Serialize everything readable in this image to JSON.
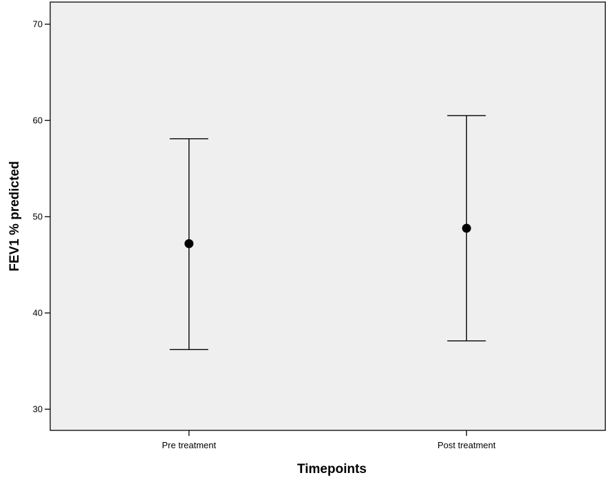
{
  "chart_data": {
    "type": "errorbar",
    "categories": [
      "Pre treatment",
      "Post treatment"
    ],
    "series": [
      {
        "means": [
          47.2,
          48.8
        ],
        "lower": [
          36.2,
          37.1
        ],
        "upper": [
          58.1,
          60.5
        ]
      }
    ],
    "xlabel": "Timepoints",
    "ylabel": "FEV1 % predicted",
    "ylim": [
      27.8,
      72.3
    ],
    "yticks": [
      30,
      40,
      50,
      60,
      70
    ],
    "grid": false,
    "colors": {
      "plot_background": "#efefef",
      "marker": "#000000",
      "error_bar": "#000000",
      "axis": "#000000"
    }
  }
}
